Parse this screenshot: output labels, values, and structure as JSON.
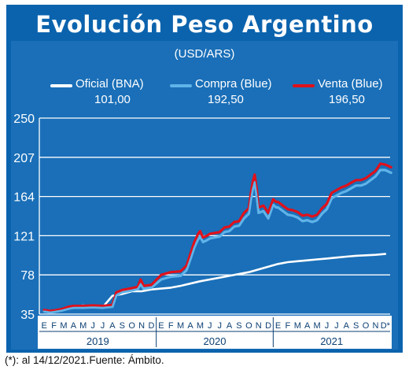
{
  "header": {
    "title": "Evolución Peso Argentino"
  },
  "units": "(USD/ARS)",
  "legend": [
    {
      "name": "Oficial (BNA)",
      "value": "101,00",
      "color": "#ffffff"
    },
    {
      "name": "Compra (Blue)",
      "value": "192,50",
      "color": "#5fb3e8"
    },
    {
      "name": "Venta (Blue)",
      "value": "196,50",
      "color": "#e0111b"
    }
  ],
  "footnote": "(*): al 14/12/2021.Fuente: Ámbito.",
  "chart_data": {
    "type": "line",
    "title": "Evolución Peso Argentino",
    "ylabel": "(USD/ARS)",
    "ylim": [
      35,
      250
    ],
    "yticks": [
      "250",
      "207",
      "164",
      "121",
      "78",
      "35"
    ],
    "grid": true,
    "legend_position": "top",
    "month_labels": [
      "E",
      "F",
      "M",
      "A",
      "M",
      "J",
      "J",
      "A",
      "S",
      "O",
      "N",
      "D",
      "E",
      "F",
      "M",
      "A",
      "M",
      "J",
      "J",
      "A",
      "S",
      "O",
      "N",
      "D",
      "E",
      "F",
      "M",
      "A",
      "M",
      "J",
      "J",
      "A",
      "S",
      "O",
      "N",
      "D*"
    ],
    "years": [
      "2019",
      "2020",
      "2021"
    ],
    "series": [
      {
        "name": "Oficial (BNA)",
        "color": "#ffffff",
        "points": [
          [
            0,
            39
          ],
          [
            1,
            38.5
          ],
          [
            2,
            40
          ],
          [
            3,
            43.5
          ],
          [
            4,
            44.5
          ],
          [
            5,
            43
          ],
          [
            6,
            42.5
          ],
          [
            7,
            55
          ],
          [
            8,
            57
          ],
          [
            9,
            60
          ],
          [
            10,
            60
          ],
          [
            11,
            62
          ],
          [
            12,
            63
          ],
          [
            13,
            64
          ],
          [
            14,
            66
          ],
          [
            15,
            68.5
          ],
          [
            16,
            71
          ],
          [
            17,
            73
          ],
          [
            18,
            75
          ],
          [
            19,
            77
          ],
          [
            20,
            79
          ],
          [
            21,
            81
          ],
          [
            22,
            84
          ],
          [
            23,
            87
          ],
          [
            24,
            90
          ],
          [
            25,
            92
          ],
          [
            26,
            93
          ],
          [
            27,
            94
          ],
          [
            28,
            95
          ],
          [
            29,
            96
          ],
          [
            30,
            97
          ],
          [
            31,
            98
          ],
          [
            32,
            99
          ],
          [
            33,
            99.5
          ],
          [
            34,
            100
          ],
          [
            35,
            101
          ]
        ]
      },
      {
        "name": "Compra (Blue)",
        "color": "#5fb3e8",
        "points": [
          [
            0,
            38
          ],
          [
            0.6,
            37
          ],
          [
            1,
            37.5
          ],
          [
            1.8,
            39
          ],
          [
            2.5,
            41
          ],
          [
            3,
            42
          ],
          [
            4,
            42
          ],
          [
            5,
            42.5
          ],
          [
            6,
            42
          ],
          [
            7,
            43
          ],
          [
            7.4,
            56
          ],
          [
            7.8,
            58
          ],
          [
            8,
            59
          ],
          [
            8.5,
            60
          ],
          [
            9,
            61
          ],
          [
            9.6,
            62.5
          ],
          [
            9.9,
            68
          ],
          [
            10.2,
            63
          ],
          [
            11,
            64
          ],
          [
            12,
            73
          ],
          [
            13,
            76
          ],
          [
            14,
            77
          ],
          [
            14.6,
            83
          ],
          [
            15,
            95
          ],
          [
            15.4,
            108
          ],
          [
            15.8,
            117
          ],
          [
            16,
            120
          ],
          [
            16.3,
            114
          ],
          [
            16.7,
            116
          ],
          [
            17,
            118
          ],
          [
            17.5,
            119
          ],
          [
            18,
            120
          ],
          [
            18.5,
            125
          ],
          [
            19,
            126
          ],
          [
            19.5,
            131
          ],
          [
            20,
            132
          ],
          [
            20.5,
            140
          ],
          [
            21,
            145
          ],
          [
            21.2,
            160
          ],
          [
            21.4,
            172
          ],
          [
            21.6,
            180
          ],
          [
            21.8,
            165
          ],
          [
            22,
            146
          ],
          [
            22.5,
            148
          ],
          [
            23,
            140
          ],
          [
            23.5,
            155
          ],
          [
            23.8,
            152
          ],
          [
            24,
            152
          ],
          [
            24.5,
            148
          ],
          [
            25,
            144
          ],
          [
            25.5,
            143
          ],
          [
            26,
            141
          ],
          [
            26.5,
            137
          ],
          [
            27,
            138
          ],
          [
            27.5,
            136
          ],
          [
            28,
            138
          ],
          [
            28.5,
            145
          ],
          [
            29,
            150
          ],
          [
            29.5,
            162
          ],
          [
            30,
            165
          ],
          [
            30.5,
            168
          ],
          [
            31,
            170
          ],
          [
            31.5,
            173
          ],
          [
            32,
            176
          ],
          [
            32.5,
            176
          ],
          [
            33,
            178
          ],
          [
            33.5,
            182
          ],
          [
            34,
            186
          ],
          [
            34.5,
            193
          ],
          [
            35,
            193
          ],
          [
            35.6,
            190
          ]
        ]
      },
      {
        "name": "Venta (Blue)",
        "color": "#e0111b",
        "points": [
          [
            0,
            39.5
          ],
          [
            0.6,
            38.5
          ],
          [
            1,
            39
          ],
          [
            1.8,
            40.5
          ],
          [
            2.5,
            43
          ],
          [
            3,
            44
          ],
          [
            4,
            44
          ],
          [
            5,
            44.5
          ],
          [
            6,
            44
          ],
          [
            7,
            45
          ],
          [
            7.4,
            59
          ],
          [
            7.8,
            60.5
          ],
          [
            8,
            61.5
          ],
          [
            8.5,
            62.5
          ],
          [
            9,
            63.5
          ],
          [
            9.6,
            65
          ],
          [
            9.9,
            73
          ],
          [
            10.2,
            66
          ],
          [
            11,
            67
          ],
          [
            12,
            78
          ],
          [
            13,
            81
          ],
          [
            14,
            82
          ],
          [
            14.6,
            88
          ],
          [
            15,
            101
          ],
          [
            15.4,
            114
          ],
          [
            15.8,
            123
          ],
          [
            16,
            126
          ],
          [
            16.3,
            119
          ],
          [
            16.7,
            121
          ],
          [
            17,
            123
          ],
          [
            17.5,
            124
          ],
          [
            18,
            125
          ],
          [
            18.5,
            130
          ],
          [
            19,
            131
          ],
          [
            19.5,
            136
          ],
          [
            20,
            137
          ],
          [
            20.5,
            146
          ],
          [
            21,
            151
          ],
          [
            21.2,
            167
          ],
          [
            21.4,
            180
          ],
          [
            21.6,
            188
          ],
          [
            21.8,
            173
          ],
          [
            22,
            152
          ],
          [
            22.5,
            154
          ],
          [
            23,
            146
          ],
          [
            23.5,
            161
          ],
          [
            23.8,
            158
          ],
          [
            24,
            158
          ],
          [
            24.5,
            154
          ],
          [
            25,
            150
          ],
          [
            25.5,
            149
          ],
          [
            26,
            147
          ],
          [
            26.5,
            143
          ],
          [
            27,
            144
          ],
          [
            27.5,
            142
          ],
          [
            28,
            144
          ],
          [
            28.5,
            151
          ],
          [
            29,
            156
          ],
          [
            29.5,
            168
          ],
          [
            30,
            171
          ],
          [
            30.5,
            174
          ],
          [
            31,
            176
          ],
          [
            31.5,
            179
          ],
          [
            32,
            182
          ],
          [
            32.5,
            182
          ],
          [
            33,
            184
          ],
          [
            33.5,
            188
          ],
          [
            34,
            192
          ],
          [
            34.5,
            200
          ],
          [
            35,
            199
          ],
          [
            35.6,
            196
          ]
        ]
      }
    ]
  }
}
